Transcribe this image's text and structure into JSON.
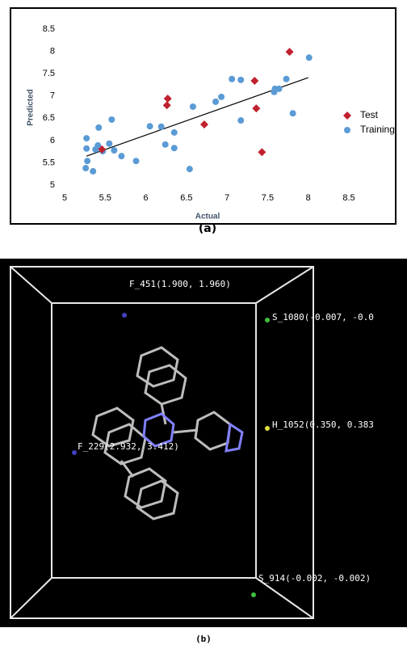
{
  "chart_data": {
    "type": "scatter",
    "xlabel": "Actual",
    "ylabel": "Predicted",
    "xlim": [
      5,
      8.5
    ],
    "xticks": [
      5,
      5.5,
      6,
      6.5,
      7,
      7.5,
      8,
      8.5
    ],
    "ylim": [
      5,
      8.5
    ],
    "yticks": [
      5,
      5.5,
      6,
      6.5,
      7,
      7.5,
      8,
      8.5
    ],
    "legend": "right",
    "series": [
      {
        "name": "Test",
        "color": "#c0212e",
        "marker": "diamond",
        "x": [
          5.46,
          6.27,
          6.26,
          6.72,
          7.34,
          7.36,
          7.43,
          7.77
        ],
        "values": [
          5.8,
          6.94,
          6.79,
          6.36,
          7.34,
          6.72,
          5.74,
          7.99
        ]
      },
      {
        "name": "Training",
        "color": "#5b9bd5",
        "marker": "circle",
        "x": [
          5.27,
          5.27,
          5.28,
          5.26,
          5.35,
          5.38,
          5.41,
          5.42,
          5.47,
          5.55,
          5.58,
          5.61,
          5.7,
          5.88,
          6.05,
          6.19,
          6.24,
          6.35,
          6.35,
          6.54,
          6.58,
          6.86,
          6.93,
          7.06,
          7.17,
          7.17,
          7.59,
          7.64,
          7.58,
          7.73,
          7.81,
          8.01
        ],
        "values": [
          6.05,
          5.82,
          5.54,
          5.38,
          5.31,
          5.8,
          5.89,
          6.29,
          5.76,
          5.93,
          6.47,
          5.78,
          5.65,
          5.54,
          6.32,
          6.31,
          5.91,
          6.18,
          5.83,
          5.36,
          6.76,
          6.87,
          6.98,
          7.38,
          7.36,
          6.45,
          7.16,
          7.16,
          7.09,
          7.38,
          6.61,
          7.86
        ]
      }
    ],
    "trendline": {
      "color": "#000000",
      "x": [
        5.27,
        8.0
      ],
      "values": [
        5.65,
        7.41
      ]
    }
  },
  "caption_a": "(a)",
  "molecule": {
    "labels": [
      "F_451(1.900, 1.960)",
      "S_1080(-0.007, -0.0",
      "H_1052(0.350, 0.383",
      "F_229(2.932, 3.412)",
      "S_914(-0.002, -0.002)"
    ]
  },
  "caption_b": "(b)"
}
